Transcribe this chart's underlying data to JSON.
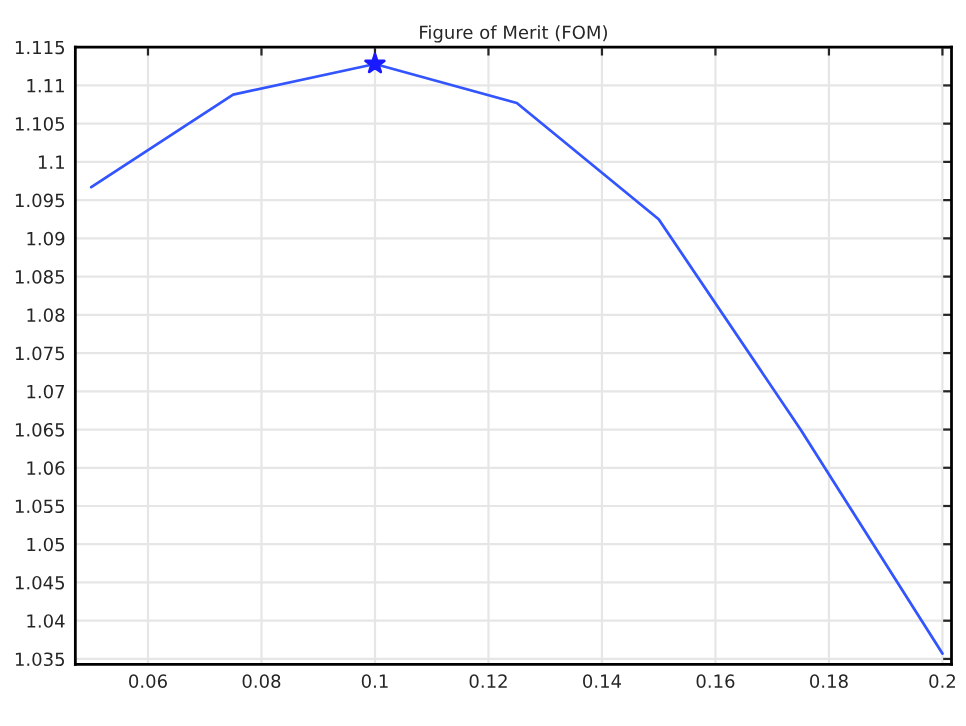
{
  "chart_data": {
    "type": "line",
    "title": "Figure of Merit (FOM)",
    "x": [
      0.05,
      0.075,
      0.1,
      0.125,
      0.15,
      0.175,
      0.2
    ],
    "series": [
      {
        "color": "#3355ff",
        "values": [
          1.0967,
          1.1088,
          1.1128,
          1.1077,
          1.0925,
          1.065,
          1.0357
        ]
      },
      {
        "type": "scatter",
        "color": "#1a1aff",
        "marker": "star",
        "x": [
          0.1
        ],
        "values": [
          1.1128
        ]
      }
    ],
    "xlim": [
      0.0472,
      0.2016
    ],
    "ylim": [
      1.0343,
      1.115
    ],
    "xticks": [
      0.06,
      0.08,
      0.1,
      0.12,
      0.14,
      0.16,
      0.18,
      0.2
    ],
    "yticks": [
      1.035,
      1.04,
      1.045,
      1.05,
      1.055,
      1.06,
      1.065,
      1.07,
      1.075,
      1.08,
      1.085,
      1.09,
      1.095,
      1.1,
      1.105,
      1.11,
      1.115
    ],
    "grid": true,
    "line_style": "solid"
  }
}
